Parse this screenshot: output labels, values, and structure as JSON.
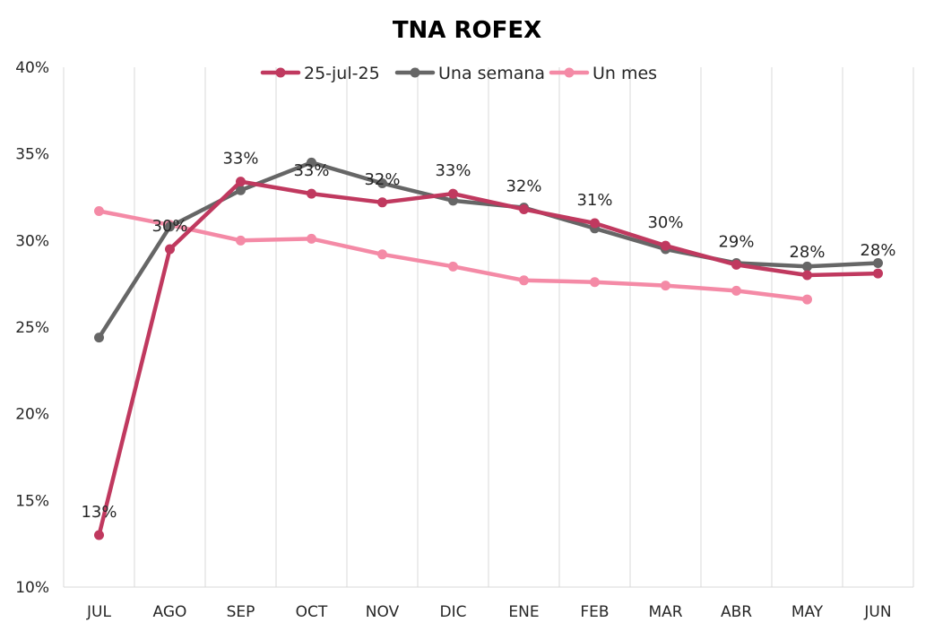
{
  "chart_data": {
    "type": "line",
    "title": "TNA ROFEX",
    "xlabel": "",
    "ylabel": "",
    "categories": [
      "JUL",
      "AGO",
      "SEP",
      "OCT",
      "NOV",
      "DIC",
      "ENE",
      "FEB",
      "MAR",
      "ABR",
      "MAY",
      "JUN"
    ],
    "ylim": [
      10,
      40
    ],
    "yticks": [
      10,
      15,
      20,
      25,
      30,
      35,
      40
    ],
    "ytick_labels": [
      "10%",
      "15%",
      "20%",
      "25%",
      "30%",
      "35%",
      "40%"
    ],
    "grid": "vertical",
    "legend_position": "top",
    "series": [
      {
        "name": "Un mes",
        "color": "#f48aa6",
        "values": [
          31.7,
          30.9,
          30.0,
          30.1,
          29.2,
          28.5,
          27.7,
          27.6,
          27.4,
          27.1,
          26.6,
          null
        ]
      },
      {
        "name": "Una semana",
        "color": "#666666",
        "values": [
          24.4,
          30.8,
          32.9,
          34.5,
          33.3,
          32.3,
          31.9,
          30.7,
          29.5,
          28.7,
          28.5,
          28.7
        ]
      },
      {
        "name": "25-jul-25",
        "color": "#c0395f",
        "values": [
          13.0,
          29.5,
          33.4,
          32.7,
          32.2,
          32.7,
          31.8,
          31.0,
          29.7,
          28.6,
          28.0,
          28.1
        ]
      }
    ],
    "legend_order": [
      "25-jul-25",
      "Una semana",
      "Un mes"
    ],
    "data_labels": {
      "series": "25-jul-25",
      "labels": [
        "13%",
        "30%",
        "33%",
        "33%",
        "32%",
        "33%",
        "32%",
        "31%",
        "30%",
        "29%",
        "28%",
        "28%"
      ]
    }
  }
}
